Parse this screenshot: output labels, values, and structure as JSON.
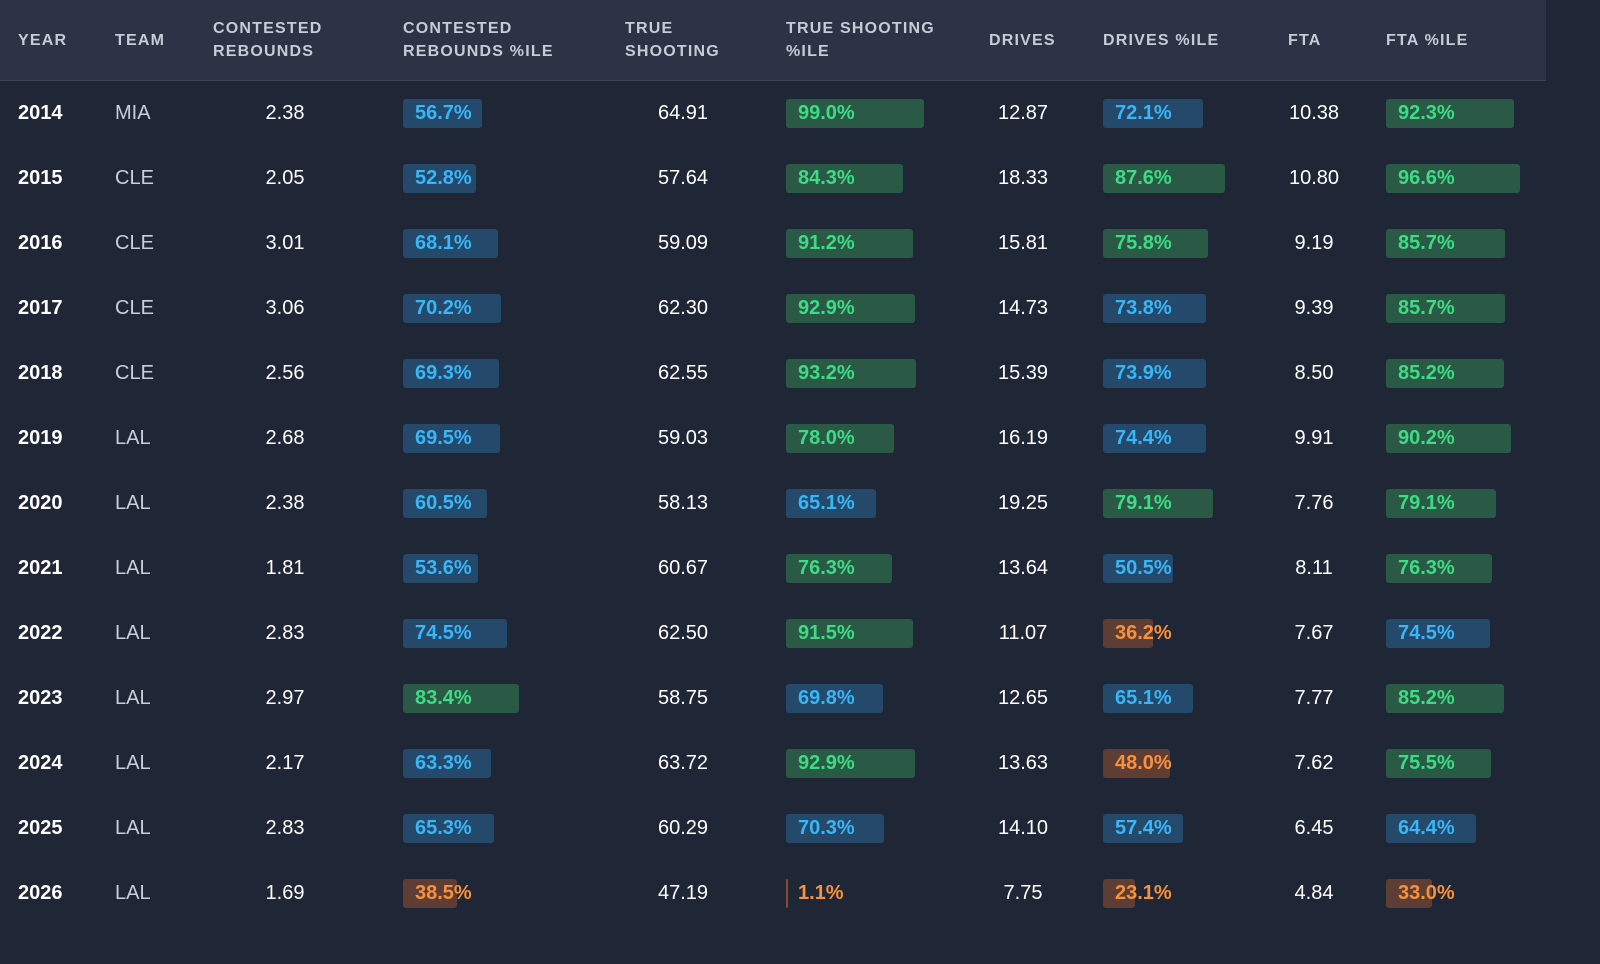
{
  "colors": {
    "background": "#1f2636",
    "header_bg": "#2b3345",
    "green": "#3ddc84",
    "blue": "#38b6f5",
    "orange": "#f7913b"
  },
  "columns": [
    {
      "key": "year",
      "label_lines": [
        "YEAR"
      ]
    },
    {
      "key": "team",
      "label_lines": [
        "TEAM"
      ]
    },
    {
      "key": "contested_rebounds",
      "label_lines": [
        "CONTESTED",
        "REBOUNDS"
      ]
    },
    {
      "key": "contested_rebounds_pctile",
      "label_lines": [
        "CONTESTED",
        "REBOUNDS %ILE"
      ]
    },
    {
      "key": "true_shooting",
      "label_lines": [
        "TRUE",
        "SHOOTING"
      ]
    },
    {
      "key": "true_shooting_pctile",
      "label_lines": [
        "TRUE SHOOTING",
        "%ILE"
      ]
    },
    {
      "key": "drives",
      "label_lines": [
        "DRIVES"
      ]
    },
    {
      "key": "drives_pctile",
      "label_lines": [
        "DRIVES %ILE"
      ]
    },
    {
      "key": "fta",
      "label_lines": [
        "FTA"
      ]
    },
    {
      "key": "fta_pctile",
      "label_lines": [
        "FTA %ILE"
      ]
    }
  ],
  "rows": [
    {
      "year": "2014",
      "team": "MIA",
      "contested_rebounds": "2.38",
      "contested_rebounds_pctile": {
        "text": "56.7%",
        "value": 56.7,
        "tone": "blue"
      },
      "true_shooting": "64.91",
      "true_shooting_pctile": {
        "text": "99.0%",
        "value": 99.0,
        "tone": "green"
      },
      "drives": "12.87",
      "drives_pctile": {
        "text": "72.1%",
        "value": 72.1,
        "tone": "blue"
      },
      "fta": "10.38",
      "fta_pctile": {
        "text": "92.3%",
        "value": 92.3,
        "tone": "green"
      }
    },
    {
      "year": "2015",
      "team": "CLE",
      "contested_rebounds": "2.05",
      "contested_rebounds_pctile": {
        "text": "52.8%",
        "value": 52.8,
        "tone": "blue"
      },
      "true_shooting": "57.64",
      "true_shooting_pctile": {
        "text": "84.3%",
        "value": 84.3,
        "tone": "green"
      },
      "drives": "18.33",
      "drives_pctile": {
        "text": "87.6%",
        "value": 87.6,
        "tone": "green"
      },
      "fta": "10.80",
      "fta_pctile": {
        "text": "96.6%",
        "value": 96.6,
        "tone": "green"
      }
    },
    {
      "year": "2016",
      "team": "CLE",
      "contested_rebounds": "3.01",
      "contested_rebounds_pctile": {
        "text": "68.1%",
        "value": 68.1,
        "tone": "blue"
      },
      "true_shooting": "59.09",
      "true_shooting_pctile": {
        "text": "91.2%",
        "value": 91.2,
        "tone": "green"
      },
      "drives": "15.81",
      "drives_pctile": {
        "text": "75.8%",
        "value": 75.8,
        "tone": "green"
      },
      "fta": "9.19",
      "fta_pctile": {
        "text": "85.7%",
        "value": 85.7,
        "tone": "green"
      }
    },
    {
      "year": "2017",
      "team": "CLE",
      "contested_rebounds": "3.06",
      "contested_rebounds_pctile": {
        "text": "70.2%",
        "value": 70.2,
        "tone": "blue"
      },
      "true_shooting": "62.30",
      "true_shooting_pctile": {
        "text": "92.9%",
        "value": 92.9,
        "tone": "green"
      },
      "drives": "14.73",
      "drives_pctile": {
        "text": "73.8%",
        "value": 73.8,
        "tone": "blue"
      },
      "fta": "9.39",
      "fta_pctile": {
        "text": "85.7%",
        "value": 85.7,
        "tone": "green"
      }
    },
    {
      "year": "2018",
      "team": "CLE",
      "contested_rebounds": "2.56",
      "contested_rebounds_pctile": {
        "text": "69.3%",
        "value": 69.3,
        "tone": "blue"
      },
      "true_shooting": "62.55",
      "true_shooting_pctile": {
        "text": "93.2%",
        "value": 93.2,
        "tone": "green"
      },
      "drives": "15.39",
      "drives_pctile": {
        "text": "73.9%",
        "value": 73.9,
        "tone": "blue"
      },
      "fta": "8.50",
      "fta_pctile": {
        "text": "85.2%",
        "value": 85.2,
        "tone": "green"
      }
    },
    {
      "year": "2019",
      "team": "LAL",
      "contested_rebounds": "2.68",
      "contested_rebounds_pctile": {
        "text": "69.5%",
        "value": 69.5,
        "tone": "blue"
      },
      "true_shooting": "59.03",
      "true_shooting_pctile": {
        "text": "78.0%",
        "value": 78.0,
        "tone": "green"
      },
      "drives": "16.19",
      "drives_pctile": {
        "text": "74.4%",
        "value": 74.4,
        "tone": "blue"
      },
      "fta": "9.91",
      "fta_pctile": {
        "text": "90.2%",
        "value": 90.2,
        "tone": "green"
      }
    },
    {
      "year": "2020",
      "team": "LAL",
      "contested_rebounds": "2.38",
      "contested_rebounds_pctile": {
        "text": "60.5%",
        "value": 60.5,
        "tone": "blue"
      },
      "true_shooting": "58.13",
      "true_shooting_pctile": {
        "text": "65.1%",
        "value": 65.1,
        "tone": "blue"
      },
      "drives": "19.25",
      "drives_pctile": {
        "text": "79.1%",
        "value": 79.1,
        "tone": "green"
      },
      "fta": "7.76",
      "fta_pctile": {
        "text": "79.1%",
        "value": 79.1,
        "tone": "green"
      }
    },
    {
      "year": "2021",
      "team": "LAL",
      "contested_rebounds": "1.81",
      "contested_rebounds_pctile": {
        "text": "53.6%",
        "value": 53.6,
        "tone": "blue"
      },
      "true_shooting": "60.67",
      "true_shooting_pctile": {
        "text": "76.3%",
        "value": 76.3,
        "tone": "green"
      },
      "drives": "13.64",
      "drives_pctile": {
        "text": "50.5%",
        "value": 50.5,
        "tone": "blue"
      },
      "fta": "8.11",
      "fta_pctile": {
        "text": "76.3%",
        "value": 76.3,
        "tone": "green"
      }
    },
    {
      "year": "2022",
      "team": "LAL",
      "contested_rebounds": "2.83",
      "contested_rebounds_pctile": {
        "text": "74.5%",
        "value": 74.5,
        "tone": "blue"
      },
      "true_shooting": "62.50",
      "true_shooting_pctile": {
        "text": "91.5%",
        "value": 91.5,
        "tone": "green"
      },
      "drives": "11.07",
      "drives_pctile": {
        "text": "36.2%",
        "value": 36.2,
        "tone": "orange"
      },
      "fta": "7.67",
      "fta_pctile": {
        "text": "74.5%",
        "value": 74.5,
        "tone": "blue"
      }
    },
    {
      "year": "2023",
      "team": "LAL",
      "contested_rebounds": "2.97",
      "contested_rebounds_pctile": {
        "text": "83.4%",
        "value": 83.4,
        "tone": "green"
      },
      "true_shooting": "58.75",
      "true_shooting_pctile": {
        "text": "69.8%",
        "value": 69.8,
        "tone": "blue"
      },
      "drives": "12.65",
      "drives_pctile": {
        "text": "65.1%",
        "value": 65.1,
        "tone": "blue"
      },
      "fta": "7.77",
      "fta_pctile": {
        "text": "85.2%",
        "value": 85.2,
        "tone": "green"
      }
    },
    {
      "year": "2024",
      "team": "LAL",
      "contested_rebounds": "2.17",
      "contested_rebounds_pctile": {
        "text": "63.3%",
        "value": 63.3,
        "tone": "blue"
      },
      "true_shooting": "63.72",
      "true_shooting_pctile": {
        "text": "92.9%",
        "value": 92.9,
        "tone": "green"
      },
      "drives": "13.63",
      "drives_pctile": {
        "text": "48.0%",
        "value": 48.0,
        "tone": "orange"
      },
      "fta": "7.62",
      "fta_pctile": {
        "text": "75.5%",
        "value": 75.5,
        "tone": "green"
      }
    },
    {
      "year": "2025",
      "team": "LAL",
      "contested_rebounds": "2.83",
      "contested_rebounds_pctile": {
        "text": "65.3%",
        "value": 65.3,
        "tone": "blue"
      },
      "true_shooting": "60.29",
      "true_shooting_pctile": {
        "text": "70.3%",
        "value": 70.3,
        "tone": "blue"
      },
      "drives": "14.10",
      "drives_pctile": {
        "text": "57.4%",
        "value": 57.4,
        "tone": "blue"
      },
      "fta": "6.45",
      "fta_pctile": {
        "text": "64.4%",
        "value": 64.4,
        "tone": "blue"
      }
    },
    {
      "year": "2026",
      "team": "LAL",
      "contested_rebounds": "1.69",
      "contested_rebounds_pctile": {
        "text": "38.5%",
        "value": 38.5,
        "tone": "orange"
      },
      "true_shooting": "47.19",
      "true_shooting_pctile": {
        "text": "1.1%",
        "value": 1.1,
        "tone": "orange"
      },
      "drives": "7.75",
      "drives_pctile": {
        "text": "23.1%",
        "value": 23.1,
        "tone": "orange"
      },
      "fta": "4.84",
      "fta_pctile": {
        "text": "33.0%",
        "value": 33.0,
        "tone": "orange"
      }
    }
  ]
}
